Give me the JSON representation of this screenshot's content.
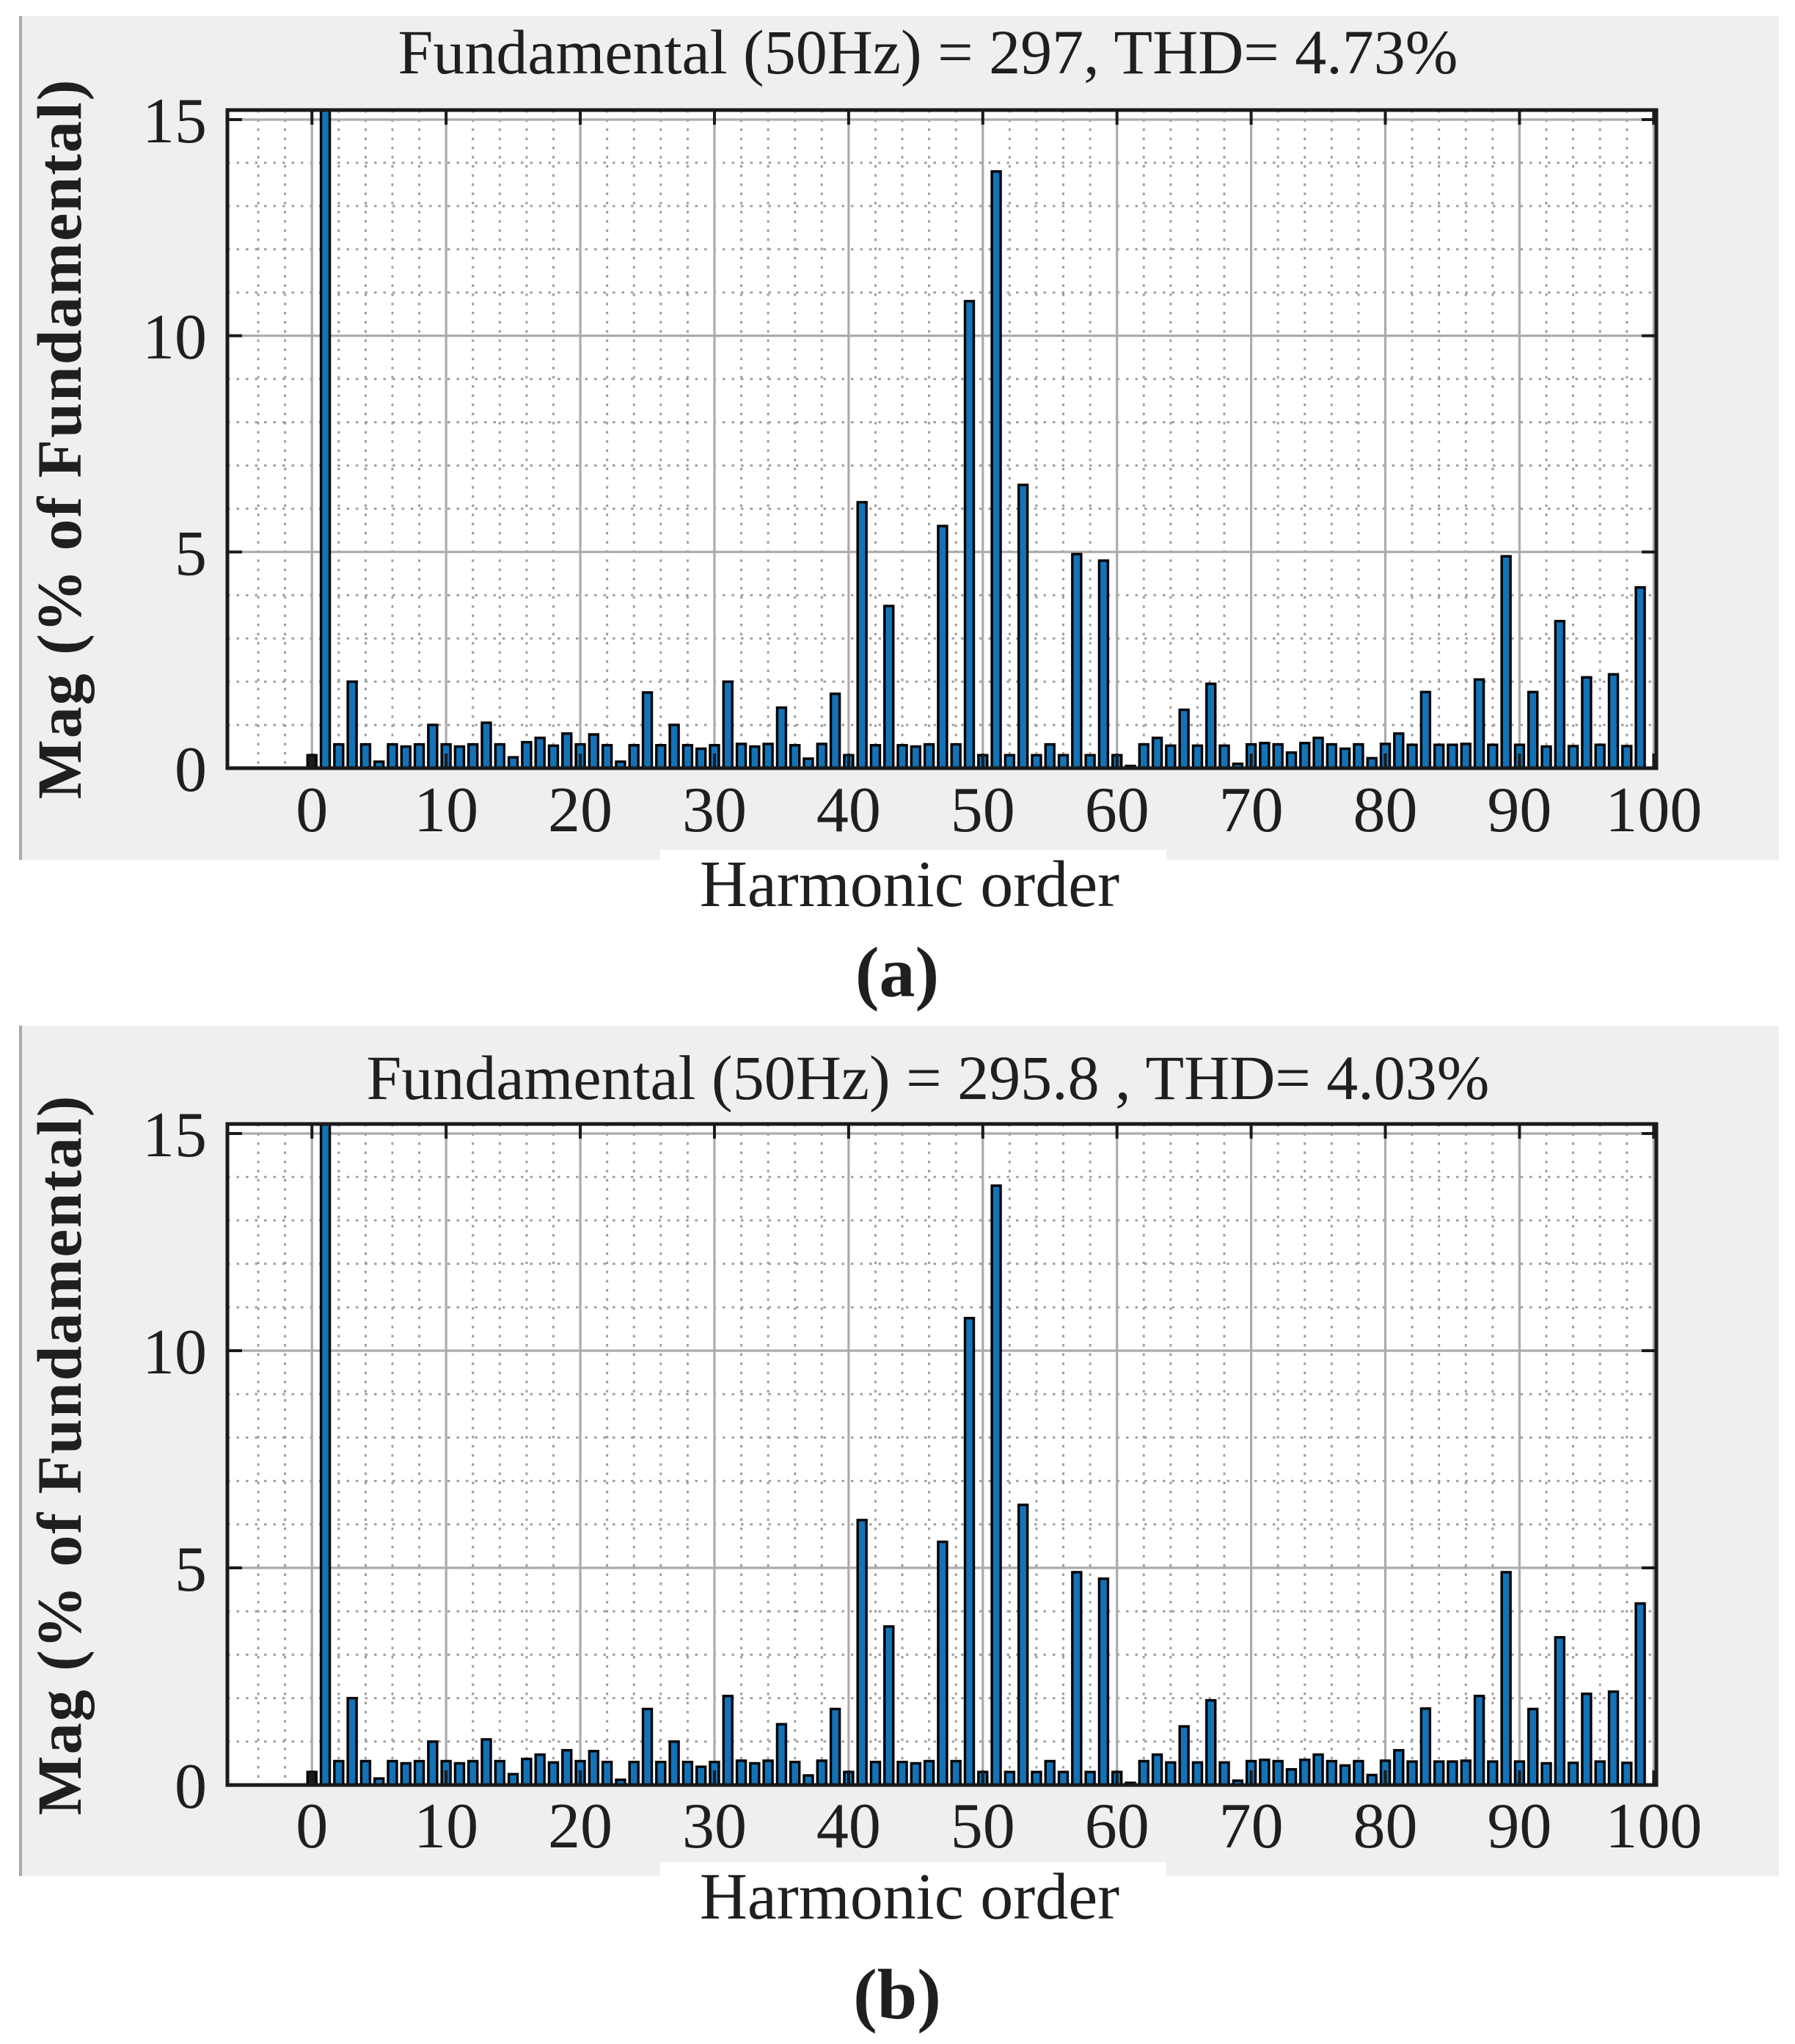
{
  "figure": {
    "background": "#ffffff",
    "panel_bg": "#efefef",
    "panel_accent_line": "#a9a9a9",
    "plot_bg": "#ffffff",
    "axis_color": "#1a1a1a",
    "major_grid_color": "#ababab",
    "minor_grid_color": "#9f9f9f"
  },
  "chart_data": [
    {
      "type": "bar",
      "panel": "a",
      "caption": "(a)",
      "title": "Fundamental (50Hz) = 297, THD= 4.73%",
      "fundamental_hz": 50,
      "fundamental_value": 297,
      "thd_percent": 4.73,
      "xlabel": "Harmonic order",
      "ylabel": "Mag (% of Fundamental)",
      "xlim": [
        -6.3,
        100.2
      ],
      "ylim": [
        0,
        15.22
      ],
      "xticks": [
        0,
        10,
        20,
        30,
        40,
        50,
        60,
        70,
        80,
        90,
        100
      ],
      "yticks": [
        0,
        5,
        10,
        15
      ],
      "grid": true,
      "minor_grid": true,
      "bar_color": "#1273b8",
      "bar_edge_color": "#000000",
      "dc_bar_color": "#1c1c1c",
      "note_fundamental_clipped": "bar at harmonic 1 = 100% is clipped at ylim 15",
      "x": [
        0,
        1,
        2,
        3,
        4,
        5,
        6,
        7,
        8,
        9,
        10,
        11,
        12,
        13,
        14,
        15,
        16,
        17,
        18,
        19,
        20,
        21,
        22,
        23,
        24,
        25,
        26,
        27,
        28,
        29,
        30,
        31,
        32,
        33,
        34,
        35,
        36,
        37,
        38,
        39,
        40,
        41,
        42,
        43,
        44,
        45,
        46,
        47,
        48,
        49,
        50,
        51,
        52,
        53,
        54,
        55,
        56,
        57,
        58,
        59,
        60,
        61,
        62,
        63,
        64,
        65,
        66,
        67,
        68,
        69,
        70,
        71,
        72,
        73,
        74,
        75,
        76,
        77,
        78,
        79,
        80,
        81,
        82,
        83,
        84,
        85,
        86,
        87,
        88,
        89,
        90,
        91,
        92,
        93,
        94,
        95,
        96,
        97,
        98,
        99
      ],
      "values": [
        0.3,
        100,
        0.55,
        2.0,
        0.55,
        0.15,
        0.55,
        0.5,
        0.55,
        1.0,
        0.55,
        0.5,
        0.55,
        1.05,
        0.55,
        0.25,
        0.6,
        0.7,
        0.52,
        0.8,
        0.55,
        0.78,
        0.53,
        0.15,
        0.53,
        1.75,
        0.53,
        1.0,
        0.53,
        0.45,
        0.53,
        2.0,
        0.56,
        0.5,
        0.56,
        1.4,
        0.53,
        0.22,
        0.56,
        1.72,
        0.3,
        6.15,
        0.53,
        3.75,
        0.53,
        0.5,
        0.55,
        5.6,
        0.55,
        10.8,
        0.3,
        13.8,
        0.3,
        6.55,
        0.3,
        0.55,
        0.3,
        4.95,
        0.3,
        4.8,
        0.3,
        0.05,
        0.55,
        0.7,
        0.52,
        1.35,
        0.52,
        1.95,
        0.52,
        0.1,
        0.55,
        0.58,
        0.55,
        0.36,
        0.58,
        0.7,
        0.55,
        0.45,
        0.55,
        0.23,
        0.56,
        0.8,
        0.54,
        1.76,
        0.54,
        0.54,
        0.56,
        2.05,
        0.54,
        4.9,
        0.54,
        1.76,
        0.5,
        3.4,
        0.51,
        2.1,
        0.54,
        2.17,
        0.51,
        4.18
      ]
    },
    {
      "type": "bar",
      "panel": "b",
      "caption": "(b)",
      "title": "Fundamental (50Hz) = 295.8 , THD= 4.03%",
      "fundamental_hz": 50,
      "fundamental_value": 295.8,
      "thd_percent": 4.03,
      "xlabel": "Harmonic order",
      "ylabel": "Mag (% of Fundamental)",
      "xlim": [
        -6.3,
        100.2
      ],
      "ylim": [
        0,
        15.22
      ],
      "xticks": [
        0,
        10,
        20,
        30,
        40,
        50,
        60,
        70,
        80,
        90,
        100
      ],
      "yticks": [
        0,
        5,
        10,
        15
      ],
      "grid": true,
      "minor_grid": true,
      "bar_color": "#1273b8",
      "bar_edge_color": "#000000",
      "dc_bar_color": "#1c1c1c",
      "note_fundamental_clipped": "bar at harmonic 1 = 100% is clipped at ylim 15",
      "x": [
        0,
        1,
        2,
        3,
        4,
        5,
        6,
        7,
        8,
        9,
        10,
        11,
        12,
        13,
        14,
        15,
        16,
        17,
        18,
        19,
        20,
        21,
        22,
        23,
        24,
        25,
        26,
        27,
        28,
        29,
        30,
        31,
        32,
        33,
        34,
        35,
        36,
        37,
        38,
        39,
        40,
        41,
        42,
        43,
        44,
        45,
        46,
        47,
        48,
        49,
        50,
        51,
        52,
        53,
        54,
        55,
        56,
        57,
        58,
        59,
        60,
        61,
        62,
        63,
        64,
        65,
        66,
        67,
        68,
        69,
        70,
        71,
        72,
        73,
        74,
        75,
        76,
        77,
        78,
        79,
        80,
        81,
        82,
        83,
        84,
        85,
        86,
        87,
        88,
        89,
        90,
        91,
        92,
        93,
        94,
        95,
        96,
        97,
        98,
        99
      ],
      "values": [
        0.3,
        100,
        0.55,
        2.0,
        0.55,
        0.15,
        0.55,
        0.5,
        0.55,
        1.0,
        0.55,
        0.5,
        0.55,
        1.05,
        0.55,
        0.25,
        0.6,
        0.7,
        0.52,
        0.8,
        0.55,
        0.78,
        0.53,
        0.12,
        0.53,
        1.75,
        0.53,
        1.0,
        0.53,
        0.42,
        0.53,
        2.05,
        0.56,
        0.5,
        0.56,
        1.4,
        0.53,
        0.22,
        0.56,
        1.75,
        0.3,
        6.1,
        0.53,
        3.65,
        0.53,
        0.5,
        0.55,
        5.6,
        0.55,
        10.75,
        0.3,
        13.8,
        0.3,
        6.45,
        0.3,
        0.55,
        0.3,
        4.9,
        0.3,
        4.75,
        0.3,
        0.05,
        0.55,
        0.7,
        0.52,
        1.35,
        0.52,
        1.95,
        0.52,
        0.1,
        0.55,
        0.58,
        0.55,
        0.36,
        0.58,
        0.7,
        0.55,
        0.45,
        0.55,
        0.23,
        0.56,
        0.8,
        0.54,
        1.76,
        0.54,
        0.54,
        0.56,
        2.05,
        0.54,
        4.9,
        0.54,
        1.75,
        0.5,
        3.4,
        0.51,
        2.1,
        0.54,
        2.15,
        0.51,
        4.18
      ]
    }
  ]
}
